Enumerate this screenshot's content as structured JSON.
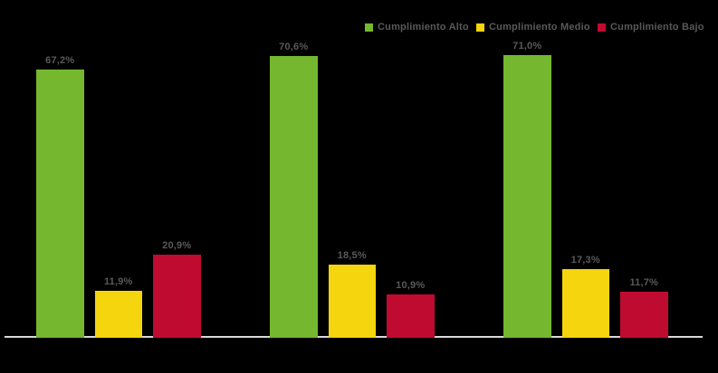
{
  "chart_data": {
    "type": "bar",
    "title": "",
    "categories": [
      "",
      "",
      ""
    ],
    "series": [
      {
        "name": "Cumplimiento Alto",
        "color": "#75B72F",
        "values": [
          67.2,
          70.6,
          71.0
        ],
        "labels": [
          "67,2%",
          "70,6%",
          "71,0%"
        ]
      },
      {
        "name": "Cumplimiento Medio",
        "color": "#F5D50D",
        "values": [
          11.9,
          18.5,
          17.3
        ],
        "labels": [
          "11,9%",
          "18,5%",
          "17,3%"
        ]
      },
      {
        "name": "Cumplimiento Bajo",
        "color": "#C00B31",
        "values": [
          20.9,
          10.9,
          11.7
        ],
        "labels": [
          "20,9%",
          "10,9%",
          "11,7%"
        ]
      }
    ],
    "value_label_format": "percent-comma-decimal",
    "legend_position": "top",
    "grid": false,
    "ylim": [
      0,
      80
    ],
    "text_color": "#595959",
    "axis_line_color": "#D9D9D9",
    "background": "#000000"
  }
}
